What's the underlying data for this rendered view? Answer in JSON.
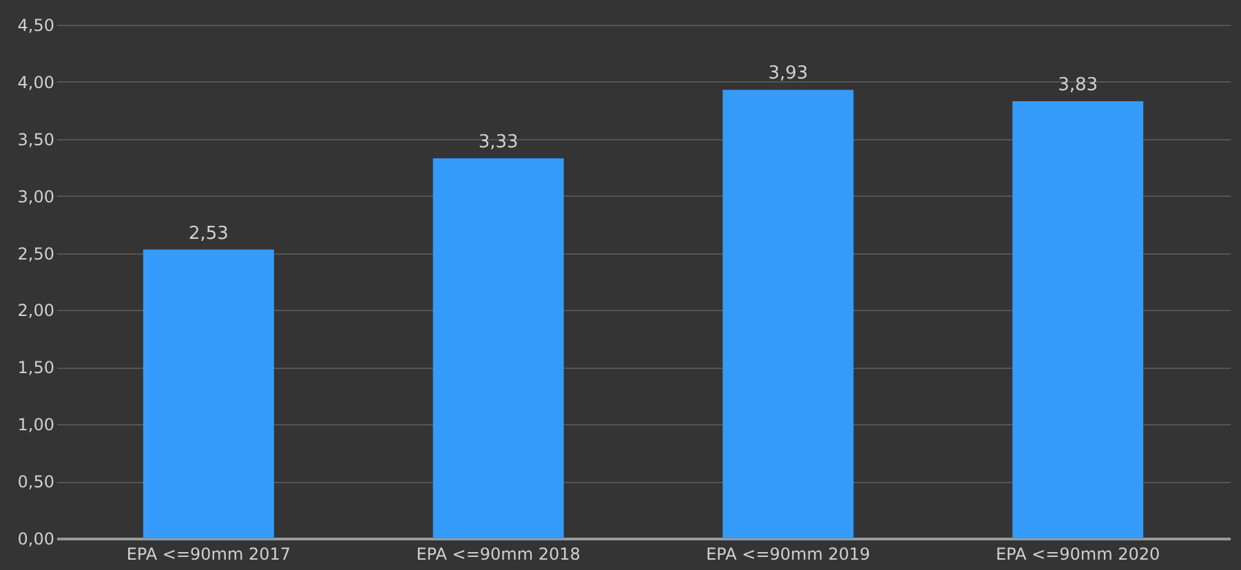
{
  "chart_data": {
    "type": "bar",
    "categories": [
      "EPA <=90mm 2017",
      "EPA <=90mm 2018",
      "EPA <=90mm 2019",
      "EPA <=90mm 2020"
    ],
    "values": [
      2.53,
      3.33,
      3.93,
      3.83
    ],
    "value_labels": [
      "2,53",
      "3,33",
      "3,93",
      "3,83"
    ],
    "color": "#349bf9",
    "ylim": [
      0,
      4.5
    ],
    "yticks": [
      {
        "value": 0,
        "label": "0,00"
      },
      {
        "value": 0.5,
        "label": "0,50"
      },
      {
        "value": 1,
        "label": "1,00"
      },
      {
        "value": 1.5,
        "label": "1,50"
      },
      {
        "value": 2,
        "label": "2,00"
      },
      {
        "value": 2.5,
        "label": "2,50"
      },
      {
        "value": 3,
        "label": "3,00"
      },
      {
        "value": 3.5,
        "label": "3,50"
      },
      {
        "value": 4,
        "label": "4,00"
      },
      {
        "value": 4.5,
        "label": "4,50"
      }
    ],
    "grid": "y"
  }
}
